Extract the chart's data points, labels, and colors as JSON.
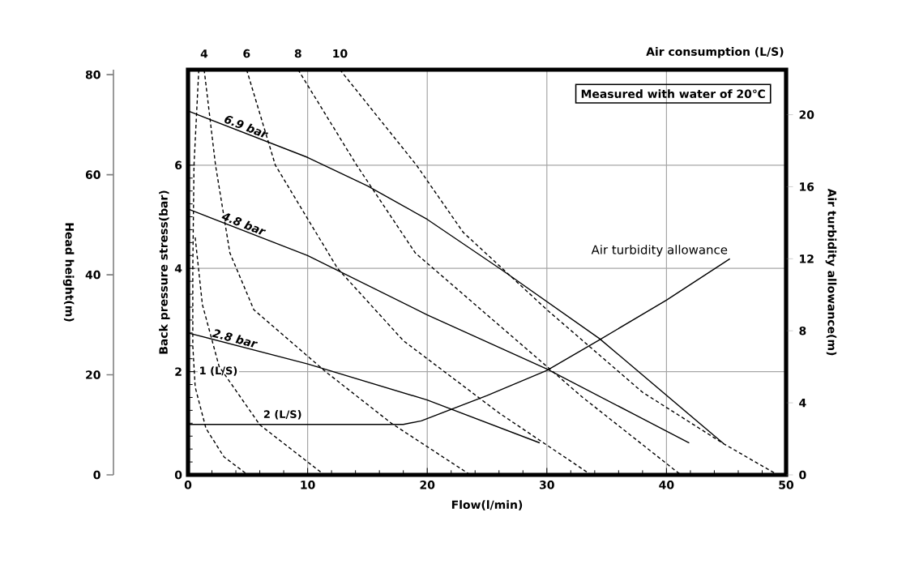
{
  "chart_data": {
    "type": "line",
    "xlabel": "Flow(l/min)",
    "ylabel": "Back pressure stress(bar)",
    "y2label": "Air turbidity allowance(m)",
    "y3label": "Head height(m)",
    "annotations": [
      "Measured with water of 20℃",
      "Air consumption (L/S)"
    ],
    "xlim": [
      0,
      50
    ],
    "xticks": [
      0,
      10,
      20,
      30,
      40,
      50
    ],
    "ylim": [
      0,
      7.85
    ],
    "yticks": [
      0,
      2,
      4,
      6
    ],
    "y2lim": [
      0,
      22.5
    ],
    "y2ticks": [
      0,
      4,
      8,
      12,
      16,
      20
    ],
    "y3lim": [
      0,
      81
    ],
    "y3ticks": [
      0,
      20,
      40,
      60,
      80
    ],
    "grid": true,
    "marker": "none",
    "series": [
      {
        "name": "6.9 bar",
        "color": "#000000",
        "line_style": "solid",
        "x": [
          0,
          10,
          15,
          20,
          26.3,
          34.4,
          44.8
        ],
        "values": [
          7.05,
          6.15,
          5.6,
          4.95,
          3.96,
          2.64,
          0.6
        ]
      },
      {
        "name": "4.8 bar",
        "color": "#000000",
        "line_style": "solid",
        "x": [
          0,
          10,
          20,
          30,
          41.9
        ],
        "values": [
          5.15,
          4.25,
          3.1,
          2.05,
          0.62
        ]
      },
      {
        "name": "2.8 bar",
        "color": "#000000",
        "line_style": "solid",
        "x": [
          0,
          10,
          20,
          29.4
        ],
        "values": [
          2.75,
          2.15,
          1.45,
          0.62
        ]
      },
      {
        "name": "Air turbidity allowance",
        "color": "#000000",
        "line_style": "solid",
        "axis": "y2",
        "x": [
          0,
          18,
          19.5,
          25,
          30,
          34.4,
          40,
          45.3
        ],
        "values": [
          2.8,
          2.8,
          3.0,
          4.4,
          5.8,
          7.5,
          9.7,
          12.0
        ]
      },
      {
        "name": "1 (L/S)",
        "color": "#000000",
        "line_style": "dashed",
        "x": [
          0.9,
          0.5,
          0.4,
          0.4,
          0.6,
          1.5,
          3,
          5
        ],
        "values": [
          7.85,
          6,
          4,
          2.5,
          1.7,
          0.9,
          0.35,
          0
        ]
      },
      {
        "name": "2 (L/S)",
        "color": "#000000",
        "line_style": "dashed",
        "x": [
          0.6,
          1.2,
          2.6,
          6,
          10,
          11.4
        ],
        "values": [
          4.6,
          3.3,
          2.1,
          0.97,
          0.25,
          0
        ]
      },
      {
        "name": "4",
        "color": "#000000",
        "line_style": "dashed",
        "x": [
          1.35,
          2.3,
          3.5,
          5.5,
          11.5,
          17,
          23.6
        ],
        "values": [
          7.85,
          6,
          4.3,
          3.2,
          2,
          1,
          0
        ]
      },
      {
        "name": "6",
        "color": "#000000",
        "line_style": "dashed",
        "x": [
          4.9,
          7.3,
          12.5,
          18,
          26,
          33.7
        ],
        "values": [
          7.85,
          6,
          4,
          2.6,
          1.2,
          0
        ]
      },
      {
        "name": "8",
        "color": "#000000",
        "line_style": "dashed",
        "x": [
          9.2,
          14.1,
          19,
          26,
          33,
          41.2
        ],
        "values": [
          7.85,
          6,
          4.3,
          2.9,
          1.5,
          0
        ]
      },
      {
        "name": "10",
        "color": "#000000",
        "line_style": "dashed",
        "x": [
          12.7,
          19.1,
          23,
          30,
          38,
          44.8,
          49.3
        ],
        "values": [
          7.85,
          6,
          4.7,
          3.2,
          1.6,
          0.6,
          0
        ]
      }
    ]
  }
}
